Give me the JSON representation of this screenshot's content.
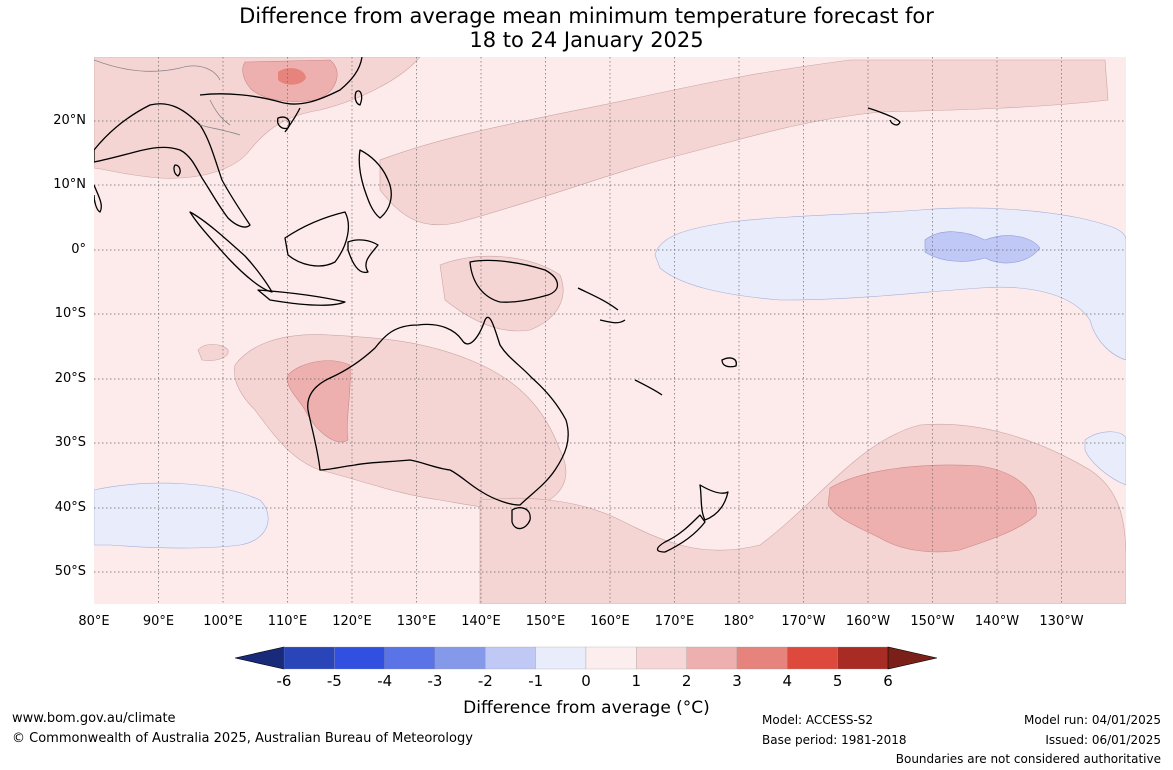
{
  "title": {
    "line1": "Difference from average mean minimum temperature forecast for",
    "line2": "18 to 24 January 2025"
  },
  "map": {
    "projection": "plate carree",
    "lon_range": [
      80,
      240
    ],
    "lat_range": [
      -55,
      30
    ],
    "gridlines": true,
    "lat_labels": [
      "20°N",
      "10°N",
      "0°",
      "10°S",
      "20°S",
      "30°S",
      "40°S",
      "50°S"
    ],
    "lon_labels": [
      "80°E",
      "90°E",
      "100°E",
      "110°E",
      "120°E",
      "130°E",
      "140°E",
      "150°E",
      "160°E",
      "170°E",
      "180°",
      "170°W",
      "160°W",
      "150°W",
      "140°W",
      "130°W"
    ]
  },
  "colorbar": {
    "ticks": [
      "-6",
      "-5",
      "-4",
      "-3",
      "-2",
      "-1",
      "0",
      "1",
      "2",
      "3",
      "4",
      "5",
      "6"
    ],
    "colors": [
      "#1a2a7a",
      "#2a45b8",
      "#3150e0",
      "#5a73e6",
      "#8599ea",
      "#c0c8f5",
      "#e9ecfb",
      "#fceeee",
      "#f6d6d6",
      "#eeb0ae",
      "#e5837c",
      "#dd4a3d",
      "#a92c24",
      "#7a2018"
    ],
    "label": "Difference from average (°C)"
  },
  "footer": {
    "url": "www.bom.gov.au/climate",
    "copyright": "© Commonwealth of Australia 2025, Australian Bureau of Meteorology",
    "model": "Model: ACCESS-S2",
    "base_period": "Base period: 1981-2018",
    "model_run": "Model run: 04/01/2025",
    "issued": "Issued: 06/01/2025",
    "disclaimer": "Boundaries are not considered authoritative"
  }
}
